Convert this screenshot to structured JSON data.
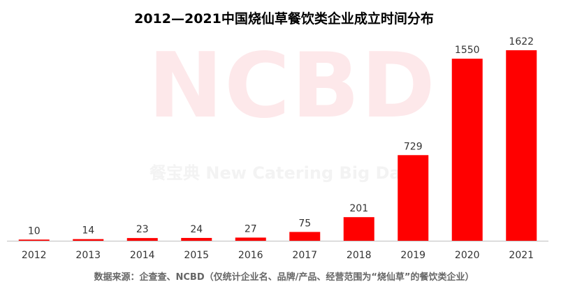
{
  "title": "2012—2021中国烧仙草餐饮类企业成立时间分布",
  "source": "数据来源：企查查、NCBD（仅统计企业名、品牌/产品、经营范围为“烧仙草”的餐饮类企业）",
  "watermark": {
    "main": "NCBD",
    "sub": "餐宝典  New Catering Big Data"
  },
  "colors": {
    "bar": "#ff0000",
    "axis": "#bfbfbf",
    "label": "#333333",
    "watermark": "#fde8ea"
  },
  "chart_data": {
    "type": "bar",
    "categories": [
      "2012",
      "2013",
      "2014",
      "2015",
      "2016",
      "2017",
      "2018",
      "2019",
      "2020",
      "2021"
    ],
    "values": [
      10,
      14,
      23,
      24,
      27,
      75,
      201,
      729,
      1550,
      1622
    ],
    "title": "2012—2021中国烧仙草餐饮类企业成立时间分布",
    "xlabel": "",
    "ylabel": "",
    "ylim": [
      0,
      1622
    ],
    "grid": false,
    "legend": "none",
    "data_labels": true
  }
}
